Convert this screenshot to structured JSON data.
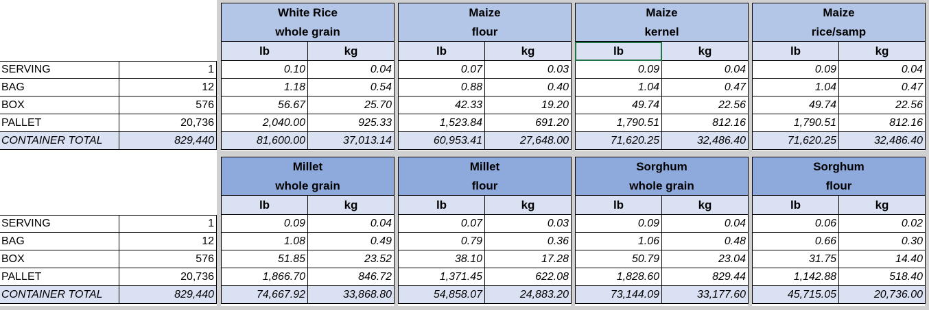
{
  "row_labels": [
    "SERVING",
    "BAG",
    "BOX",
    "PALLET",
    "CONTAINER TOTAL"
  ],
  "counts": [
    "1",
    "12",
    "576",
    "20,736",
    "829,440"
  ],
  "unit_labels": [
    "lb",
    "kg"
  ],
  "tables": [
    {
      "products": [
        {
          "line1": "White Rice",
          "line2": "whole grain",
          "lb": [
            "0.10",
            "1.18",
            "56.67",
            "2,040.00",
            "81,600.00"
          ],
          "kg": [
            "0.04",
            "0.54",
            "25.70",
            "925.33",
            "37,013.14"
          ]
        },
        {
          "line1": "Maize",
          "line2": "flour",
          "lb": [
            "0.07",
            "0.88",
            "42.33",
            "1,523.84",
            "60,953.41"
          ],
          "kg": [
            "0.03",
            "0.40",
            "19.20",
            "691.20",
            "27,648.00"
          ]
        },
        {
          "line1": "Maize",
          "line2": "kernel",
          "lb": [
            "0.09",
            "1.04",
            "49.74",
            "1,790.51",
            "71,620.25"
          ],
          "kg": [
            "0.04",
            "0.47",
            "22.56",
            "812.16",
            "32,486.40"
          ]
        },
        {
          "line1": "Maize",
          "line2": "rice/samp",
          "lb": [
            "0.09",
            "1.04",
            "49.74",
            "1,790.51",
            "71,620.25"
          ],
          "kg": [
            "0.04",
            "0.47",
            "22.56",
            "812.16",
            "32,486.40"
          ]
        }
      ]
    },
    {
      "products": [
        {
          "line1": "Millet",
          "line2": "whole grain",
          "lb": [
            "0.09",
            "1.08",
            "51.85",
            "1,866.70",
            "74,667.92"
          ],
          "kg": [
            "0.04",
            "0.49",
            "23.52",
            "846.72",
            "33,868.80"
          ]
        },
        {
          "line1": "Millet",
          "line2": "flour",
          "lb": [
            "0.07",
            "0.79",
            "38.10",
            "1,371.45",
            "54,858.07"
          ],
          "kg": [
            "0.03",
            "0.36",
            "17.28",
            "622.08",
            "24,883.20"
          ]
        },
        {
          "line1": "Sorghum",
          "line2": "whole grain",
          "lb": [
            "0.09",
            "1.06",
            "50.79",
            "1,828.60",
            "73,144.09"
          ],
          "kg": [
            "0.04",
            "0.48",
            "23.04",
            "829.44",
            "33,177.60"
          ]
        },
        {
          "line1": "Sorghum",
          "line2": "flour",
          "lb": [
            "0.06",
            "0.66",
            "31.75",
            "1,142.88",
            "45,715.05"
          ],
          "kg": [
            "0.02",
            "0.30",
            "14.40",
            "518.40",
            "20,736.00"
          ]
        }
      ]
    }
  ],
  "colors": {
    "header_fill_first": "#b4c6e7",
    "header_fill_second": "#8ea9db",
    "unit_row_fill": "#d9e1f2",
    "total_row_fill": "#d9e1f2",
    "selection_border": "#217346",
    "separator": "#d0d0d0"
  },
  "selected_cell": {
    "table": 0,
    "product": 2,
    "unit": "lb"
  }
}
